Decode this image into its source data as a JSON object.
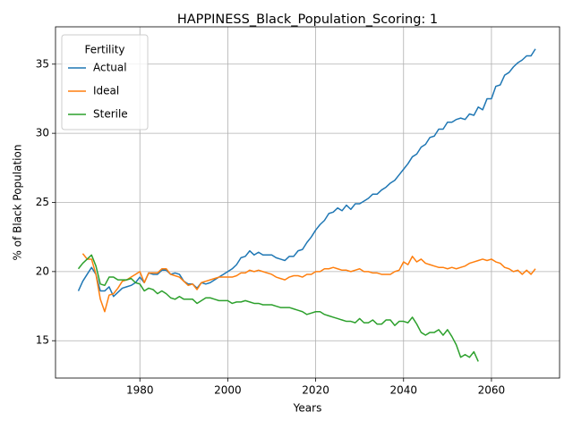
{
  "chart_data": {
    "type": "line",
    "title": "HAPPINESS_Black_Population_Scoring: 1",
    "xlabel": "Years",
    "ylabel": "% of Black Population",
    "legend_title": "Fertility",
    "legend_loc": "upper left",
    "grid": true,
    "xlim": [
      1960.8,
      2075.5
    ],
    "ylim": [
      12.3,
      37.7
    ],
    "xticks": [
      1980,
      2000,
      2020,
      2040,
      2060
    ],
    "yticks": [
      15,
      20,
      25,
      30,
      35
    ],
    "x": [
      1966,
      1967,
      1968,
      1969,
      1970,
      1971,
      1972,
      1973,
      1974,
      1975,
      1976,
      1977,
      1978,
      1979,
      1980,
      1981,
      1982,
      1983,
      1984,
      1985,
      1986,
      1987,
      1988,
      1989,
      1990,
      1991,
      1992,
      1993,
      1994,
      1995,
      1996,
      1997,
      1998,
      1999,
      2000,
      2001,
      2002,
      2003,
      2004,
      2005,
      2006,
      2007,
      2008,
      2009,
      2010,
      2011,
      2012,
      2013,
      2014,
      2015,
      2016,
      2017,
      2018,
      2019,
      2020,
      2021,
      2022,
      2023,
      2024,
      2025,
      2026,
      2027,
      2028,
      2029,
      2030,
      2031,
      2032,
      2033,
      2034,
      2035,
      2036,
      2037,
      2038,
      2039,
      2040,
      2041,
      2042,
      2043,
      2044,
      2045,
      2046,
      2047,
      2048,
      2049,
      2050,
      2051,
      2052,
      2053,
      2054,
      2055,
      2056,
      2057,
      2058,
      2059,
      2060,
      2061,
      2062,
      2063,
      2064,
      2065,
      2066,
      2067,
      2068,
      2069,
      2070
    ],
    "series": [
      {
        "name": "Actual",
        "color": "#1f77b4",
        "values": [
          18.6,
          19.3,
          19.8,
          20.3,
          19.8,
          18.6,
          18.6,
          18.9,
          18.2,
          18.5,
          18.8,
          18.9,
          19.0,
          19.2,
          19.6,
          19.2,
          19.9,
          19.8,
          19.8,
          20.1,
          20.1,
          19.8,
          19.9,
          19.8,
          19.3,
          19.1,
          19.1,
          18.8,
          19.2,
          19.1,
          19.2,
          19.4,
          19.6,
          19.8,
          20.0,
          20.2,
          20.5,
          21.0,
          21.1,
          21.5,
          21.2,
          21.4,
          21.2,
          21.2,
          21.2,
          21.0,
          20.9,
          20.8,
          21.1,
          21.1,
          21.5,
          21.6,
          22.1,
          22.5,
          23.0,
          23.4,
          23.7,
          24.2,
          24.3,
          24.6,
          24.4,
          24.8,
          24.5,
          24.9,
          24.9,
          25.1,
          25.3,
          25.6,
          25.6,
          25.9,
          26.1,
          26.4,
          26.6,
          27.0,
          27.4,
          27.8,
          28.3,
          28.5,
          29.0,
          29.2,
          29.7,
          29.8,
          30.3,
          30.3,
          30.8,
          30.8,
          31.0,
          31.1,
          31.0,
          31.4,
          31.3,
          31.9,
          31.7,
          32.5,
          32.5,
          33.4,
          33.5,
          34.2,
          34.4,
          34.8,
          35.1,
          35.3,
          35.6,
          35.6,
          36.1
        ]
      },
      {
        "name": "Ideal",
        "color": "#ff7f0e",
        "values": [
          null,
          21.3,
          20.9,
          20.9,
          19.8,
          18.0,
          17.1,
          18.3,
          18.4,
          18.8,
          19.3,
          19.4,
          19.6,
          19.8,
          20.0,
          19.2,
          19.9,
          19.9,
          19.9,
          20.2,
          20.2,
          19.8,
          19.7,
          19.6,
          19.3,
          19.0,
          19.1,
          18.7,
          19.2,
          19.3,
          19.4,
          19.5,
          19.6,
          19.6,
          19.6,
          19.6,
          19.7,
          19.9,
          19.9,
          20.1,
          20.0,
          20.1,
          20.0,
          19.9,
          19.8,
          19.6,
          19.5,
          19.4,
          19.6,
          19.7,
          19.7,
          19.6,
          19.8,
          19.8,
          20.0,
          20.0,
          20.2,
          20.2,
          20.3,
          20.2,
          20.1,
          20.1,
          20.0,
          20.1,
          20.2,
          20.0,
          20.0,
          19.9,
          19.9,
          19.8,
          19.8,
          19.8,
          20.0,
          20.1,
          20.7,
          20.5,
          21.1,
          20.7,
          20.9,
          20.6,
          20.5,
          20.4,
          20.3,
          20.3,
          20.2,
          20.3,
          20.2,
          20.3,
          20.4,
          20.6,
          20.7,
          20.8,
          20.9,
          20.8,
          20.9,
          20.7,
          20.6,
          20.3,
          20.2,
          20.0,
          20.1,
          19.8,
          20.1,
          19.8,
          20.2
        ]
      },
      {
        "name": "Sterile",
        "color": "#2ca02c",
        "values": [
          20.2,
          20.6,
          20.9,
          21.2,
          20.4,
          19.1,
          19.0,
          19.6,
          19.6,
          19.4,
          19.4,
          19.4,
          19.5,
          19.2,
          19.1,
          18.6,
          18.8,
          18.7,
          18.4,
          18.6,
          18.4,
          18.1,
          18.0,
          18.2,
          18.0,
          18.0,
          18.0,
          17.7,
          17.9,
          18.1,
          18.1,
          18.0,
          17.9,
          17.9,
          17.9,
          17.7,
          17.8,
          17.8,
          17.9,
          17.8,
          17.7,
          17.7,
          17.6,
          17.6,
          17.6,
          17.5,
          17.4,
          17.4,
          17.4,
          17.3,
          17.2,
          17.1,
          16.9,
          17.0,
          17.1,
          17.1,
          16.9,
          16.8,
          16.7,
          16.6,
          16.5,
          16.4,
          16.4,
          16.3,
          16.6,
          16.3,
          16.3,
          16.5,
          16.2,
          16.2,
          16.5,
          16.5,
          16.1,
          16.4,
          16.4,
          16.3,
          16.7,
          16.2,
          15.6,
          15.4,
          15.6,
          15.6,
          15.8,
          15.4,
          15.8,
          15.3,
          14.7,
          13.8,
          14.0,
          13.8,
          14.2,
          13.5,
          null,
          null,
          null,
          null,
          null,
          null,
          null,
          null,
          null,
          null,
          null,
          null,
          null
        ]
      }
    ]
  }
}
